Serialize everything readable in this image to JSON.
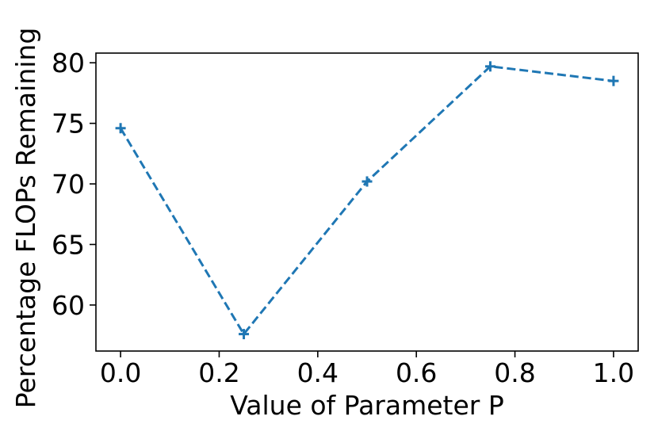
{
  "chart_data": {
    "type": "line",
    "title": "",
    "xlabel": "Value of Parameter P",
    "ylabel": "Percentage FLOPs Remaining",
    "x": [
      0.0,
      0.25,
      0.5,
      0.75,
      1.0
    ],
    "series": [
      {
        "values": [
          74.6,
          57.6,
          70.2,
          79.7,
          78.5
        ],
        "color": "#1f77b4",
        "line_style": "dashed",
        "marker": "plus"
      }
    ],
    "xlim": [
      -0.05,
      1.05
    ],
    "ylim": [
      56.2,
      80.8
    ],
    "x_ticks": [
      {
        "value": 0.0,
        "label": "0.0"
      },
      {
        "value": 0.2,
        "label": "0.2"
      },
      {
        "value": 0.4,
        "label": "0.4"
      },
      {
        "value": 0.6,
        "label": "0.6"
      },
      {
        "value": 0.8,
        "label": "0.8"
      },
      {
        "value": 1.0,
        "label": "1.0"
      }
    ],
    "y_ticks": [
      {
        "value": 60,
        "label": "60"
      },
      {
        "value": 65,
        "label": "65"
      },
      {
        "value": 70,
        "label": "70"
      },
      {
        "value": 75,
        "label": "75"
      },
      {
        "value": 80,
        "label": "80"
      }
    ],
    "grid": false,
    "legend": "none"
  }
}
